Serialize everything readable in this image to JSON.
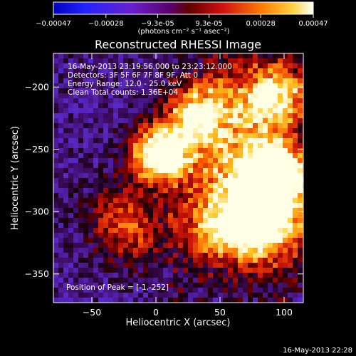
{
  "chart_data": {
    "type": "heatmap",
    "title": "Reconstructed RHESSI Image",
    "xlabel": "Heliocentric X (arcsec)",
    "ylabel": "Heliocentric Y (arcsec)",
    "xlim": [
      -80,
      115
    ],
    "ylim": [
      -373,
      -173
    ],
    "x_ticks": [
      -50,
      0,
      50,
      100
    ],
    "y_ticks": [
      -350,
      -300,
      -250,
      -200
    ],
    "colormap": "blue-purple-red-orange-yellow-white",
    "grid": false,
    "colorbar": {
      "position": "top",
      "range": [
        -0.00047,
        0.00047
      ],
      "tick_labels": [
        "-0.00047",
        "-0.00028",
        "-9.3e-05",
        "9.3e-05",
        "0.00028",
        "0.00047"
      ],
      "unit_label": "(photons cm⁻² s⁻¹ asec⁻²)"
    },
    "annotations": [
      "16-May-2013 23:19:56.000 to 23:23:12.000",
      "Detectors: 3F 5F 6F 7F 8F 9F, Att 0",
      "Energy Range: 12.0 - 25.0 keV",
      "Clean     Total counts: 1.36E+04"
    ],
    "peak_label": "Position of Peak = [-1,-252]",
    "peak_position": [
      -1,
      -252
    ],
    "bright_regions": [
      {
        "x": 0,
        "y": -252,
        "relative_intensity": 1.0
      },
      {
        "x": 92,
        "y": -268,
        "relative_intensity": 0.85
      },
      {
        "x": 72,
        "y": -305,
        "relative_intensity": 0.75
      },
      {
        "x": 28,
        "y": -220,
        "relative_intensity": 0.6
      },
      {
        "x": 95,
        "y": -205,
        "relative_intensity": 0.55
      }
    ]
  },
  "footer": {
    "timestamp": "16-May-2013 22:28"
  }
}
